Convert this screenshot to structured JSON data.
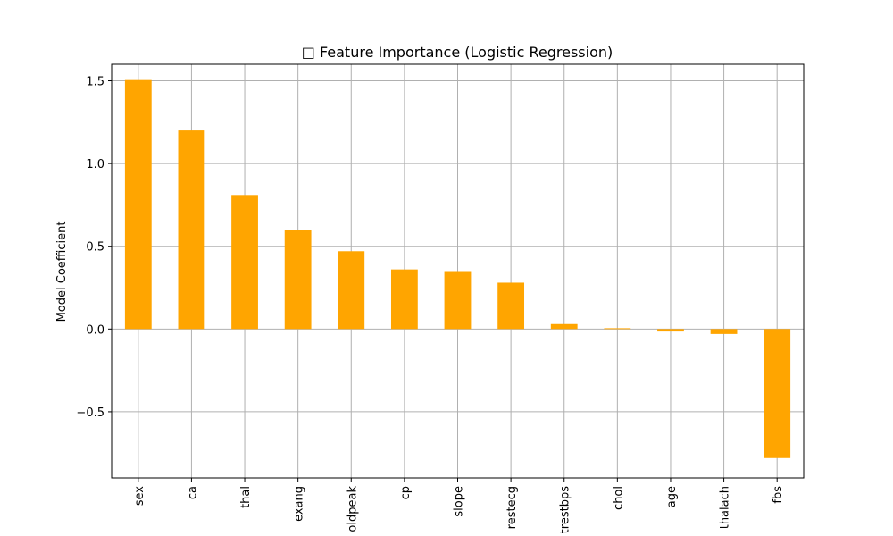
{
  "chart_data": {
    "type": "bar",
    "title": "□ Feature Importance (Logistic Regression)",
    "xlabel": "",
    "ylabel": "Model Coefficient",
    "categories": [
      "sex",
      "ca",
      "thal",
      "exang",
      "oldpeak",
      "cp",
      "slope",
      "restecg",
      "trestbps",
      "chol",
      "age",
      "thalach",
      "fbs"
    ],
    "values": [
      1.51,
      1.2,
      0.81,
      0.6,
      0.47,
      0.36,
      0.35,
      0.28,
      0.03,
      0.005,
      -0.015,
      -0.03,
      -0.78
    ],
    "ylim": [
      -0.9,
      1.6
    ],
    "yticks": [
      -0.5,
      0.0,
      0.5,
      1.0,
      1.5
    ],
    "ytick_labels": [
      "−0.5",
      "0.0",
      "0.5",
      "1.0",
      "1.5"
    ],
    "grid": true,
    "bar_color": "#ffa500",
    "grid_color": "#b0b0b0"
  }
}
